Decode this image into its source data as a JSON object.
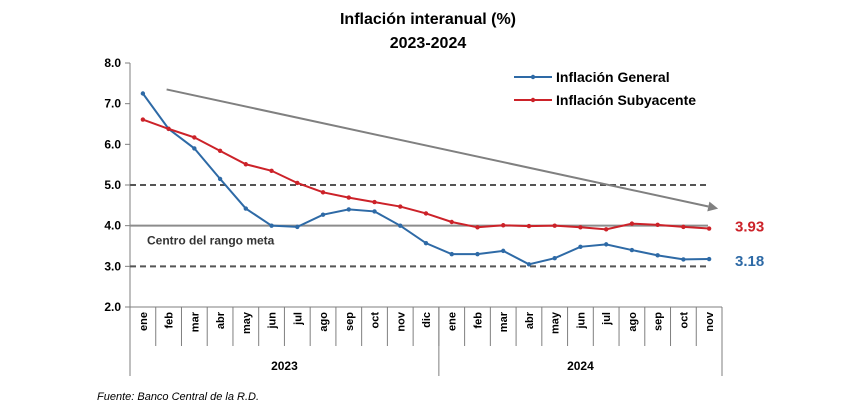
{
  "chart_data": {
    "type": "line",
    "title": "Inflación interanual (%)",
    "subtitle": "2023-2024",
    "categories": [
      "ene",
      "feb",
      "mar",
      "abr",
      "may",
      "jun",
      "jul",
      "ago",
      "sep",
      "oct",
      "nov",
      "dic",
      "ene",
      "feb",
      "mar",
      "abr",
      "may",
      "jun",
      "jul",
      "ago",
      "sep",
      "oct",
      "nov"
    ],
    "year_groups": [
      {
        "label": "2023",
        "start": 0,
        "end": 11
      },
      {
        "label": "2024",
        "start": 12,
        "end": 22
      }
    ],
    "ylim": [
      2.0,
      8.0
    ],
    "yticks": [
      "2.0",
      "3.0",
      "4.0",
      "5.0",
      "6.0",
      "7.0",
      "8.0"
    ],
    "series": [
      {
        "name": "Inflación General",
        "color": "#2e6aa6",
        "values": [
          7.25,
          6.38,
          5.9,
          5.15,
          4.42,
          4.0,
          3.97,
          4.27,
          4.4,
          4.35,
          4.0,
          3.57,
          3.3,
          3.3,
          3.38,
          3.05,
          3.2,
          3.48,
          3.54,
          3.4,
          3.27,
          3.17,
          3.18
        ]
      },
      {
        "name": "Inflación Subyacente",
        "color": "#cc2229",
        "values": [
          6.61,
          6.38,
          6.17,
          5.84,
          5.51,
          5.35,
          5.05,
          4.82,
          4.69,
          4.58,
          4.47,
          4.3,
          4.09,
          3.96,
          4.01,
          3.99,
          4.0,
          3.96,
          3.91,
          4.05,
          4.02,
          3.97,
          3.93
        ]
      }
    ],
    "reference_lines": [
      {
        "value": 5.0,
        "style": "dashed",
        "label": ""
      },
      {
        "value": 4.0,
        "style": "solid",
        "label": "Centro del rango meta"
      },
      {
        "value": 3.0,
        "style": "dashed",
        "label": ""
      }
    ],
    "trend_arrow": {
      "from": {
        "x": "feb",
        "x_index": 1,
        "y": 7.35
      },
      "to": {
        "x": "nov",
        "x_index": 22,
        "y": 4.42
      }
    },
    "end_labels": [
      {
        "series": "Inflación Subyacente",
        "text": "3.93"
      },
      {
        "series": "Inflación General",
        "text": "3.18"
      }
    ],
    "legend_position": "top-right",
    "grid": false,
    "source": "Fuente: Banco Central de la R.D."
  }
}
